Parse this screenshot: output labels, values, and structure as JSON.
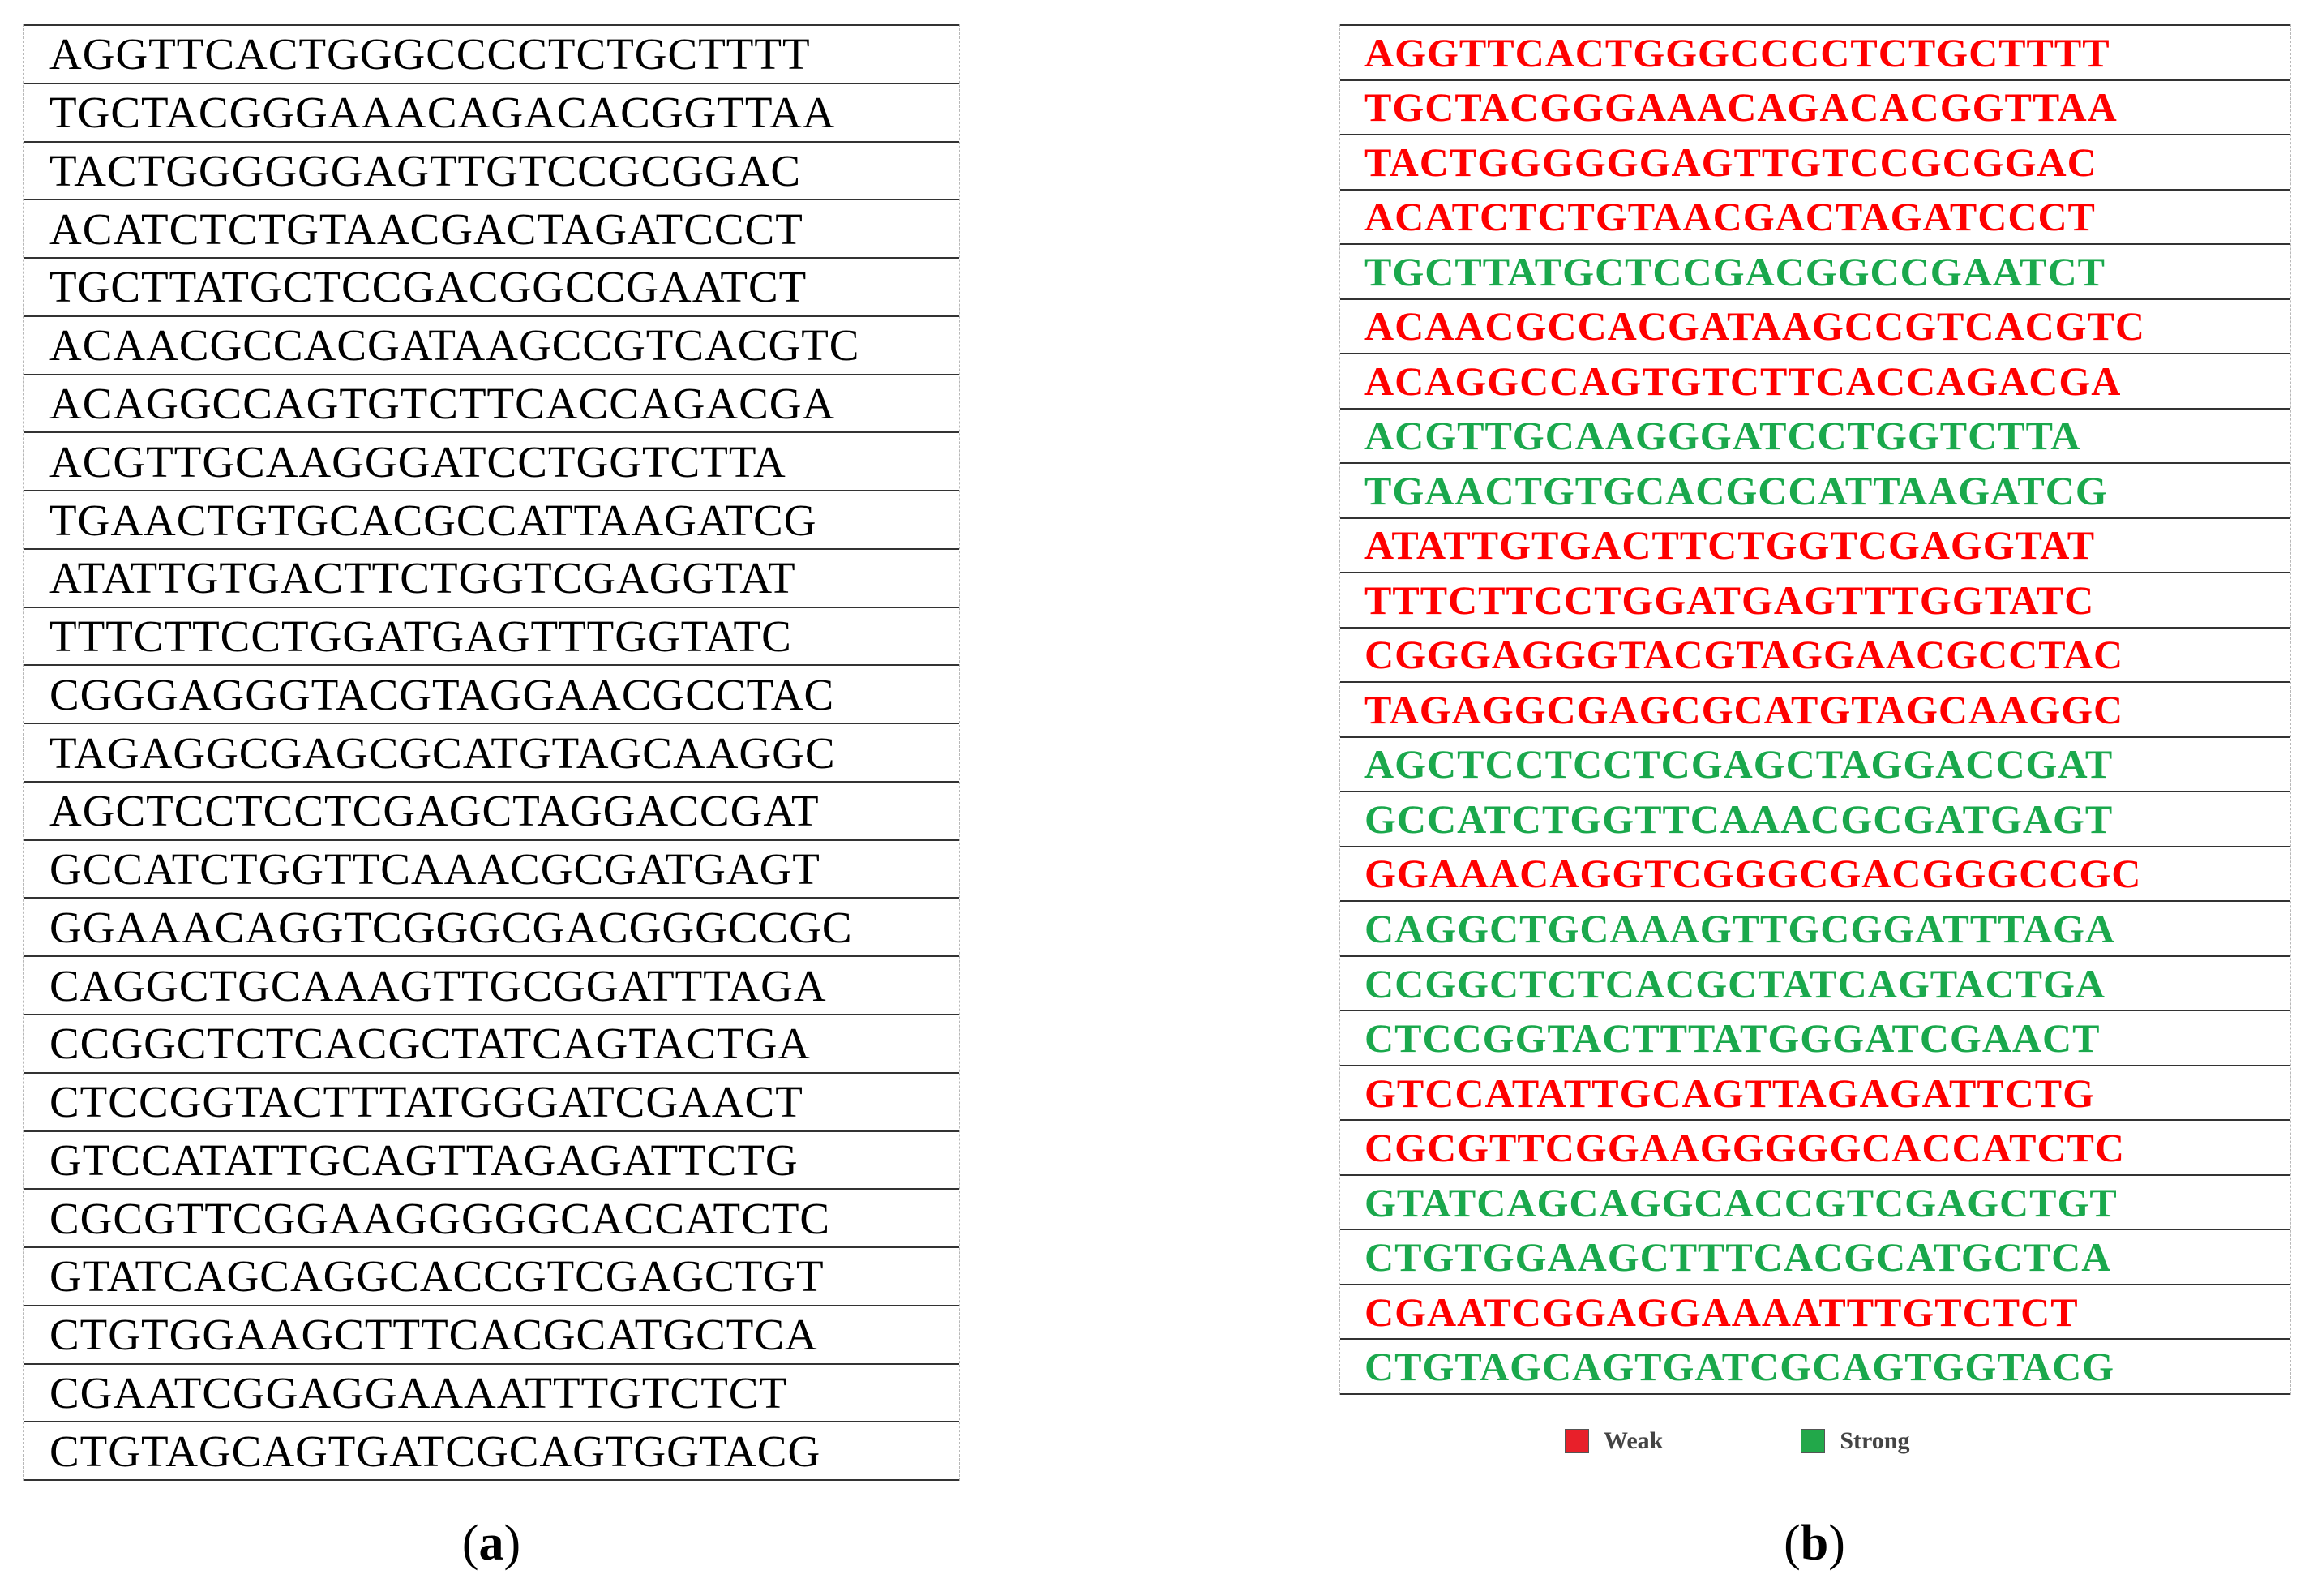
{
  "panel_a": {
    "sequences": [
      "AGGTTCACTGGGCCCCTCTGCTTTT",
      "TGCTACGGGAAACAGACACGGTTAA",
      "TACTGGGGGGAGTTGTCCGCGGAC",
      "ACATCTCTGTAACGACTAGATCCCT",
      "TGCTTATGCTCCGACGGCCGAATCT",
      "ACAACGCCACGATAAGCCGTCACGTC",
      "ACAGGCCAGTGTCTTCACCAGACGA",
      "ACGTTGCAAGGGATCCTGGTCTTA",
      "TGAACTGTGCACGCCATTAAGATCG",
      "ATATTGTGACTTCTGGTCGAGGTAT",
      "TTTCTTCCTGGATGAGTTTGGTATC",
      "CGGGAGGGTACGTAGGAACGCCTAC",
      "TAGAGGCGAGCGCATGTAGCAAGGC",
      "AGCTCCTCCTCGAGCTAGGACCGAT",
      "GCCATCTGGTTCAAACGCGATGAGT",
      "GGAAACAGGTCGGGCGACGGGCCGC",
      "CAGGCTGCAAAGTTGCGGATTTAGA",
      "CCGGCTCTCACGCTATCAGTACTGA",
      "CTCCGGTACTTTATGGGATCGAACT",
      "GTCCATATTGCAGTTAGAGATTCTG",
      "CGCGTTCGGAAGGGGGCACCATCTC",
      "GTATCAGCAGGCACCGTCGAGCTGT",
      "CTGTGGAAGCTTTCACGCATGCTCA",
      "CGAATCGGAGGAAAATTTGTCTCT",
      "CTGTAGCAGTGATCGCAGTGGTACG"
    ]
  },
  "panel_b": {
    "sequences": [
      {
        "text": "AGGTTCACTGGGCCCCTCTGCTTTT",
        "class": "Weak"
      },
      {
        "text": "TGCTACGGGAAACAGACACGGTTAA",
        "class": "Weak"
      },
      {
        "text": "TACTGGGGGGAGTTGTCCGCGGAC",
        "class": "Weak"
      },
      {
        "text": "ACATCTCTGTAACGACTAGATCCCT",
        "class": "Weak"
      },
      {
        "text": "TGCTTATGCTCCGACGGCCGAATCT",
        "class": "Strong"
      },
      {
        "text": "ACAACGCCACGATAAGCCGTCACGTC",
        "class": "Weak"
      },
      {
        "text": "ACAGGCCAGTGTCTTCACCAGACGA",
        "class": "Weak"
      },
      {
        "text": "ACGTTGCAAGGGATCCTGGTCTTA",
        "class": "Strong"
      },
      {
        "text": "TGAACTGTGCACGCCATTAAGATCG",
        "class": "Strong"
      },
      {
        "text": "ATATTGTGACTTCTGGTCGAGGTAT",
        "class": "Weak"
      },
      {
        "text": "TTTCTTCCTGGATGAGTTTGGTATC",
        "class": "Weak"
      },
      {
        "text": "CGGGAGGGTACGTAGGAACGCCTAC",
        "class": "Weak"
      },
      {
        "text": "TAGAGGCGAGCGCATGTAGCAAGGC",
        "class": "Weak"
      },
      {
        "text": "AGCTCCTCCTCGAGCTAGGACCGAT",
        "class": "Strong"
      },
      {
        "text": "GCCATCTGGTTCAAACGCGATGAGT",
        "class": "Strong"
      },
      {
        "text": "GGAAACAGGTCGGGCGACGGGCCGC",
        "class": "Weak"
      },
      {
        "text": "CAGGCTGCAAAGTTGCGGATTTAGA",
        "class": "Strong"
      },
      {
        "text": "CCGGCTCTCACGCTATCAGTACTGA",
        "class": "Strong"
      },
      {
        "text": "CTCCGGTACTTTATGGGATCGAACT",
        "class": "Strong"
      },
      {
        "text": "GTCCATATTGCAGTTAGAGATTCTG",
        "class": "Weak"
      },
      {
        "text": "CGCGTTCGGAAGGGGGCACCATCTC",
        "class": "Weak"
      },
      {
        "text": "GTATCAGCAGGCACCGTCGAGCTGT",
        "class": "Strong"
      },
      {
        "text": "CTGTGGAAGCTTTCACGCATGCTCA",
        "class": "Strong"
      },
      {
        "text": "CGAATCGGAGGAAAATTTGTCTCT",
        "class": "Weak"
      },
      {
        "text": "CTGTAGCAGTGATCGCAGTGGTACG",
        "class": "Strong"
      }
    ]
  },
  "legend": {
    "weak_label": "Weak",
    "strong_label": "Strong"
  },
  "colors": {
    "Weak": "#ff0000",
    "Strong": "#1aa84c",
    "weak_swatch": "#e8202a",
    "strong_swatch": "#22a84a"
  },
  "captions": {
    "a_open": "(",
    "a_letter": "a",
    "a_close": ")",
    "b_open": "(",
    "b_letter": "b",
    "b_close": ")"
  }
}
